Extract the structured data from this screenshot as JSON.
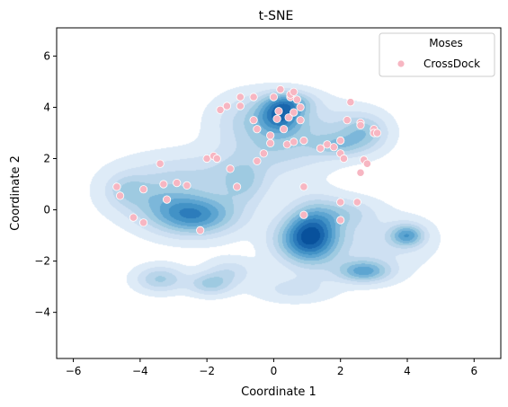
{
  "chart_data": {
    "type": "scatter",
    "title": "t-SNE",
    "xlabel": "Coordinate 1",
    "ylabel": "Coordinate 2",
    "xlim": [
      -6.5,
      6.8
    ],
    "ylim": [
      -5.8,
      7.1
    ],
    "xticks": [
      -6,
      -4,
      -2,
      0,
      2,
      4,
      6
    ],
    "yticks": [
      -4,
      -2,
      0,
      2,
      4,
      6
    ],
    "grid": false,
    "legend": {
      "placement": "top-right",
      "title": "Moses",
      "entries": [
        "CrossDock"
      ]
    },
    "density_series": {
      "name": "Moses",
      "color": "#08519c",
      "levels": 10,
      "clusters": [
        {
          "x": -2.4,
          "y": -0.2,
          "sx": 0.9,
          "sy": 0.55,
          "w": 1.0
        },
        {
          "x": -3.7,
          "y": 0.5,
          "sx": 0.9,
          "sy": 0.6,
          "w": 0.35
        },
        {
          "x": -4.4,
          "y": 0.8,
          "sx": 0.4,
          "sy": 0.4,
          "w": 0.25
        },
        {
          "x": -2.3,
          "y": 1.4,
          "sx": 1.5,
          "sy": 0.6,
          "w": 0.3
        },
        {
          "x": -0.9,
          "y": 1.0,
          "sx": 0.5,
          "sy": 0.6,
          "w": 0.35
        },
        {
          "x": -3.4,
          "y": -2.7,
          "sx": 0.5,
          "sy": 0.35,
          "w": 0.5
        },
        {
          "x": -1.9,
          "y": -2.9,
          "sx": 0.45,
          "sy": 0.3,
          "w": 0.5
        },
        {
          "x": -1.3,
          "y": -2.4,
          "sx": 0.5,
          "sy": 0.35,
          "w": 0.3
        },
        {
          "x": 0.2,
          "y": 3.7,
          "sx": 0.45,
          "sy": 0.45,
          "w": 0.8
        },
        {
          "x": -0.6,
          "y": 3.5,
          "sx": 0.8,
          "sy": 0.7,
          "w": 0.4
        },
        {
          "x": 0.5,
          "y": 4.2,
          "sx": 0.5,
          "sy": 0.3,
          "w": 0.5
        },
        {
          "x": 1.2,
          "y": 3.2,
          "sx": 1.0,
          "sy": 0.7,
          "w": 0.3
        },
        {
          "x": 2.7,
          "y": 3.0,
          "sx": 0.5,
          "sy": 0.5,
          "w": 0.5
        },
        {
          "x": 1.9,
          "y": 2.5,
          "sx": 0.5,
          "sy": 0.3,
          "w": 0.35
        },
        {
          "x": 0.1,
          "y": 2.3,
          "sx": 1.1,
          "sy": 0.6,
          "w": 0.3
        },
        {
          "x": 1.2,
          "y": -0.9,
          "sx": 0.55,
          "sy": 0.8,
          "w": 1.0
        },
        {
          "x": 0.7,
          "y": -1.2,
          "sx": 0.6,
          "sy": 0.6,
          "w": 0.5
        },
        {
          "x": 2.7,
          "y": -2.4,
          "sx": 0.55,
          "sy": 0.3,
          "w": 0.75
        },
        {
          "x": 4.0,
          "y": -1.0,
          "sx": 0.35,
          "sy": 0.3,
          "w": 0.75
        },
        {
          "x": 2.9,
          "y": -1.3,
          "sx": 1.2,
          "sy": 0.8,
          "w": 0.25
        },
        {
          "x": 0.6,
          "y": -3.1,
          "sx": 0.8,
          "sy": 0.35,
          "w": 0.25
        },
        {
          "x": 2.2,
          "y": -0.1,
          "sx": 0.6,
          "sy": 0.4,
          "w": 0.3
        }
      ]
    },
    "series": [
      {
        "name": "CrossDock",
        "color": "#f7b6c2",
        "points": [
          [
            -4.7,
            0.9
          ],
          [
            -4.6,
            0.55
          ],
          [
            -4.2,
            -0.3
          ],
          [
            -3.9,
            -0.5
          ],
          [
            -3.9,
            0.8
          ],
          [
            -3.4,
            1.8
          ],
          [
            -3.3,
            1.0
          ],
          [
            -3.2,
            0.4
          ],
          [
            -2.9,
            1.05
          ],
          [
            -2.6,
            0.95
          ],
          [
            -2.2,
            -0.8
          ],
          [
            -2.0,
            2.0
          ],
          [
            -1.8,
            2.1
          ],
          [
            -1.7,
            2.0
          ],
          [
            -1.3,
            1.6
          ],
          [
            -1.1,
            0.9
          ],
          [
            -1.6,
            3.9
          ],
          [
            -1.4,
            4.05
          ],
          [
            -1.0,
            4.4
          ],
          [
            -1.0,
            4.05
          ],
          [
            -0.6,
            4.4
          ],
          [
            -0.6,
            3.5
          ],
          [
            -0.5,
            3.15
          ],
          [
            -0.5,
            1.9
          ],
          [
            -0.3,
            2.2
          ],
          [
            -0.1,
            2.9
          ],
          [
            -0.1,
            2.6
          ],
          [
            0.0,
            4.4
          ],
          [
            0.1,
            3.55
          ],
          [
            0.15,
            3.85
          ],
          [
            0.2,
            4.7
          ],
          [
            0.3,
            3.15
          ],
          [
            0.4,
            2.55
          ],
          [
            0.45,
            3.6
          ],
          [
            0.5,
            4.4
          ],
          [
            0.5,
            4.5
          ],
          [
            0.6,
            4.6
          ],
          [
            0.6,
            3.8
          ],
          [
            0.6,
            2.65
          ],
          [
            0.7,
            4.3
          ],
          [
            0.8,
            4.0
          ],
          [
            0.8,
            3.5
          ],
          [
            0.9,
            2.7
          ],
          [
            0.9,
            0.9
          ],
          [
            0.9,
            -0.2
          ],
          [
            1.4,
            2.4
          ],
          [
            1.6,
            2.55
          ],
          [
            1.8,
            2.45
          ],
          [
            2.0,
            2.7
          ],
          [
            2.0,
            2.2
          ],
          [
            2.0,
            0.3
          ],
          [
            2.0,
            -0.4
          ],
          [
            2.1,
            2.0
          ],
          [
            2.2,
            3.5
          ],
          [
            2.3,
            4.2
          ],
          [
            2.5,
            0.3
          ],
          [
            2.6,
            3.4
          ],
          [
            2.6,
            3.3
          ],
          [
            2.6,
            1.45
          ],
          [
            2.7,
            1.95
          ],
          [
            2.8,
            1.8
          ],
          [
            3.0,
            3.15
          ],
          [
            3.0,
            3.0
          ],
          [
            3.1,
            3.0
          ]
        ]
      }
    ]
  }
}
